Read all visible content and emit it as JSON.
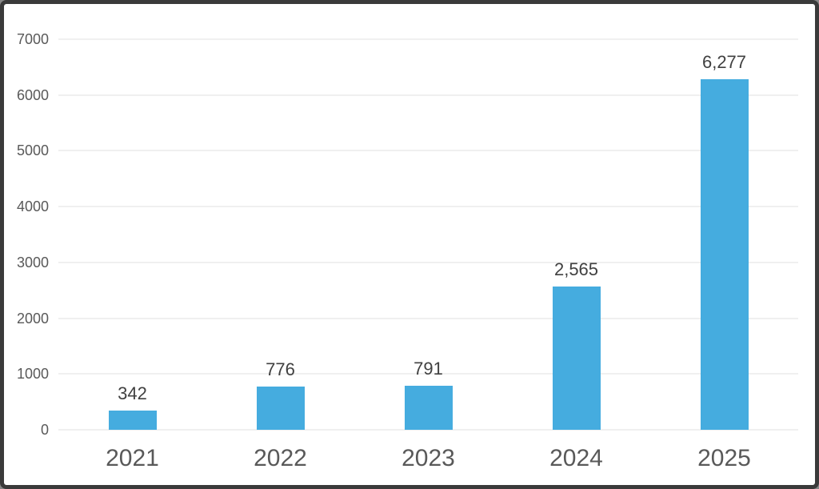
{
  "chart_data": {
    "type": "bar",
    "title": "",
    "xlabel": "",
    "ylabel": "",
    "categories": [
      "2021",
      "2022",
      "2023",
      "2024",
      "2025"
    ],
    "values": [
      342,
      776,
      791,
      2565,
      6277
    ],
    "value_labels": [
      "342",
      "776",
      "791",
      "2,565",
      "6,277"
    ],
    "ylim": [
      0,
      7000
    ],
    "yticks": [
      0,
      1000,
      2000,
      3000,
      4000,
      5000,
      6000,
      7000
    ],
    "ytick_labels": [
      "0",
      "1000",
      "2000",
      "3000",
      "4000",
      "5000",
      "6000",
      "7000"
    ],
    "grid": "horizontal",
    "legend_position": "none",
    "series": [
      {
        "name": "",
        "values": [
          342,
          776,
          791,
          2565,
          6277
        ]
      }
    ]
  },
  "colors": {
    "bar": "#45ACDF",
    "gridline": "#e2e2e2",
    "y_tick_label": "#595959",
    "x_tick_label": "#595959",
    "value_label": "#404040",
    "frame_border": "#3a3a3a",
    "background": "#ffffff"
  }
}
